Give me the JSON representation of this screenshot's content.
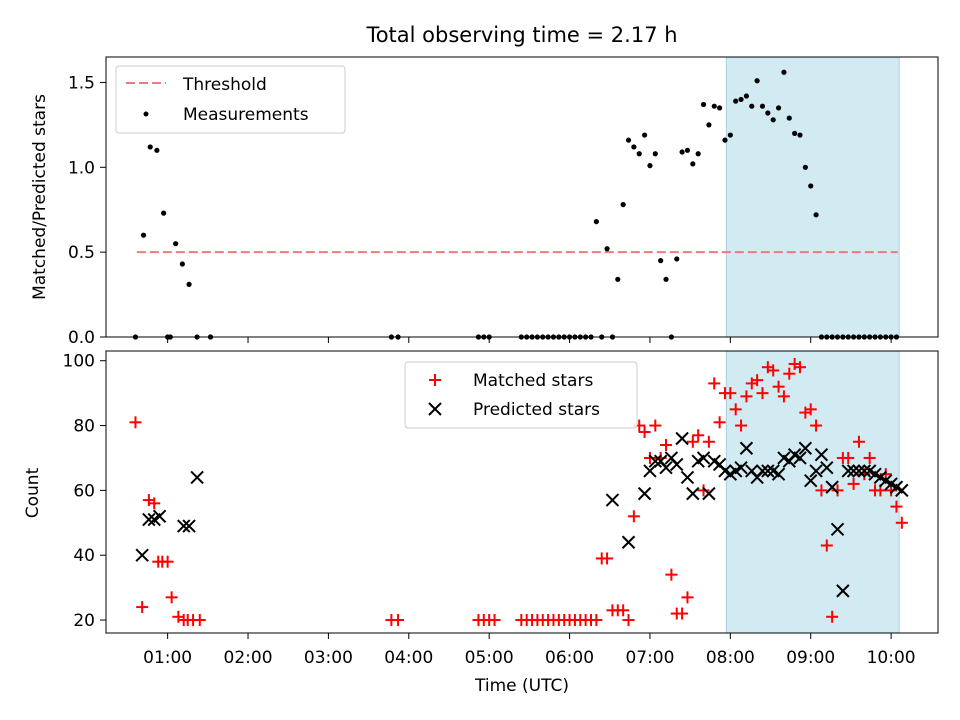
{
  "chart_data": [
    {
      "type": "scatter",
      "title": "Total observing time = 2.17 h",
      "ylabel": "Matched/Predicted stars",
      "xlim": [
        "00:14",
        "10:35"
      ],
      "ylim": [
        0,
        1.65
      ],
      "yticks": [
        0.0,
        0.5,
        1.0,
        1.5
      ],
      "ytick_labels": [
        "0.0",
        "0.5",
        "1.0",
        "1.5"
      ],
      "xticks": [
        "01:00",
        "02:00",
        "03:00",
        "04:00",
        "05:00",
        "06:00",
        "07:00",
        "08:00",
        "09:00",
        "10:00"
      ],
      "legend": {
        "placement": "top-left",
        "entries": [
          "Threshold",
          "Measurements"
        ]
      },
      "threshold": {
        "name": "Threshold",
        "value": 0.5,
        "x_range": [
          "00:37",
          "10:05"
        ],
        "color": "#f07a7a"
      },
      "shaded_interval": {
        "x_range": [
          "07:57",
          "10:06"
        ],
        "color": "#add8e6"
      },
      "series": [
        {
          "name": "Measurements",
          "color": "#000000",
          "x": [
            "00:36",
            "00:42",
            "00:47",
            "00:52",
            "00:57",
            "01:00",
            "01:02",
            "01:06",
            "01:11",
            "01:16",
            "01:22",
            "01:32",
            "03:47",
            "03:52",
            "04:52",
            "04:56",
            "05:00",
            "05:24",
            "05:28",
            "05:32",
            "05:36",
            "05:40",
            "05:44",
            "05:48",
            "05:52",
            "05:56",
            "06:00",
            "06:04",
            "06:08",
            "06:12",
            "06:16",
            "06:20",
            "06:24",
            "06:28",
            "06:32",
            "06:36",
            "06:40",
            "06:44",
            "06:48",
            "06:52",
            "06:56",
            "07:00",
            "07:04",
            "07:08",
            "07:12",
            "07:16",
            "07:20",
            "07:24",
            "07:28",
            "07:32",
            "07:36",
            "07:40",
            "07:44",
            "07:48",
            "07:52",
            "07:56",
            "08:00",
            "08:04",
            "08:08",
            "08:12",
            "08:16",
            "08:20",
            "08:24",
            "08:28",
            "08:32",
            "08:36",
            "08:40",
            "08:44",
            "08:48",
            "08:52",
            "08:56",
            "09:00",
            "09:04",
            "09:08",
            "09:12",
            "09:16",
            "09:20",
            "09:24",
            "09:28",
            "09:32",
            "09:36",
            "09:40",
            "09:44",
            "09:48",
            "09:52",
            "09:56",
            "10:00",
            "10:04"
          ],
          "y": [
            0,
            0.6,
            1.12,
            1.1,
            0.73,
            0,
            0,
            0.55,
            0.43,
            0.31,
            0,
            0,
            0,
            0,
            0,
            0,
            0,
            0,
            0,
            0,
            0,
            0,
            0,
            0,
            0,
            0,
            0,
            0,
            0,
            0,
            0,
            0.68,
            0,
            0.52,
            0,
            0.34,
            0.78,
            1.16,
            1.12,
            1.08,
            1.19,
            1.01,
            1.08,
            0.45,
            0.34,
            0,
            0.46,
            1.09,
            1.1,
            1.02,
            1.08,
            1.37,
            1.25,
            1.36,
            1.35,
            1.16,
            1.19,
            1.39,
            1.4,
            1.42,
            1.36,
            1.51,
            1.36,
            1.32,
            1.28,
            1.35,
            1.56,
            1.29,
            1.2,
            1.19,
            1.0,
            0.89,
            0.72,
            0,
            0,
            0,
            0,
            0,
            0,
            0,
            0,
            0,
            0,
            0,
            0,
            0,
            0,
            0
          ]
        }
      ]
    },
    {
      "type": "scatter",
      "xlabel": "Time (UTC)",
      "ylabel": "Count",
      "xlim": [
        "00:14",
        "10:35"
      ],
      "ylim": [
        16,
        103
      ],
      "yticks": [
        20,
        40,
        60,
        80,
        100
      ],
      "xticks": [
        "01:00",
        "02:00",
        "03:00",
        "04:00",
        "05:00",
        "06:00",
        "07:00",
        "08:00",
        "09:00",
        "10:00"
      ],
      "legend": {
        "placement": "top-center",
        "entries": [
          "Matched stars",
          "Predicted stars"
        ]
      },
      "shaded_interval": {
        "x_range": [
          "07:57",
          "10:06"
        ],
        "color": "#add8e6"
      },
      "series": [
        {
          "name": "Matched stars",
          "marker": "+",
          "color": "#ff0000",
          "x": [
            "00:36",
            "00:41",
            "00:46",
            "00:50",
            "00:53",
            "00:56",
            "01:00",
            "01:03",
            "01:08",
            "01:12",
            "01:15",
            "01:19",
            "01:24",
            "03:47",
            "03:52",
            "04:52",
            "04:56",
            "05:00",
            "05:04",
            "05:24",
            "05:28",
            "05:32",
            "05:36",
            "05:40",
            "05:44",
            "05:48",
            "05:52",
            "05:56",
            "06:00",
            "06:04",
            "06:08",
            "06:12",
            "06:16",
            "06:20",
            "06:24",
            "06:28",
            "06:32",
            "06:36",
            "06:40",
            "06:44",
            "06:48",
            "06:52",
            "06:56",
            "07:00",
            "07:04",
            "07:08",
            "07:12",
            "07:16",
            "07:20",
            "07:24",
            "07:28",
            "07:32",
            "07:36",
            "07:40",
            "07:44",
            "07:48",
            "07:52",
            "07:56",
            "08:00",
            "08:04",
            "08:08",
            "08:12",
            "08:16",
            "08:20",
            "08:24",
            "08:28",
            "08:32",
            "08:36",
            "08:40",
            "08:44",
            "08:48",
            "08:52",
            "08:56",
            "09:00",
            "09:04",
            "09:08",
            "09:12",
            "09:16",
            "09:20",
            "09:24",
            "09:28",
            "09:32",
            "09:36",
            "09:40",
            "09:44",
            "09:48",
            "09:52",
            "09:56",
            "10:00",
            "10:04",
            "10:08"
          ],
          "y": [
            81,
            24,
            57,
            56,
            38,
            38,
            38,
            27,
            21,
            20,
            20,
            20,
            20,
            20,
            20,
            20,
            20,
            20,
            20,
            20,
            20,
            20,
            20,
            20,
            20,
            20,
            20,
            20,
            20,
            20,
            20,
            20,
            20,
            20,
            39,
            39,
            23,
            23,
            23,
            20,
            52,
            80,
            78,
            70,
            80,
            70,
            74,
            34,
            22,
            22,
            27,
            75,
            77,
            60,
            75,
            93,
            81,
            90,
            90,
            85,
            80,
            89,
            93,
            94,
            90,
            98,
            97,
            92,
            89,
            96,
            99,
            98,
            84,
            85,
            80,
            60,
            43,
            21,
            60,
            70,
            70,
            62,
            75,
            65,
            70,
            60,
            60,
            65,
            60,
            55,
            50
          ]
        },
        {
          "name": "Predicted stars",
          "marker": "x",
          "color": "#000000",
          "x": [
            "00:41",
            "00:46",
            "00:50",
            "00:54",
            "01:12",
            "01:16",
            "01:22",
            "06:32",
            "06:44",
            "06:56",
            "07:00",
            "07:04",
            "07:08",
            "07:12",
            "07:16",
            "07:20",
            "07:24",
            "07:28",
            "07:32",
            "07:36",
            "07:40",
            "07:44",
            "07:48",
            "07:52",
            "07:56",
            "08:00",
            "08:04",
            "08:08",
            "08:12",
            "08:16",
            "08:20",
            "08:24",
            "08:28",
            "08:32",
            "08:36",
            "08:40",
            "08:44",
            "08:48",
            "08:52",
            "08:56",
            "09:00",
            "09:04",
            "09:08",
            "09:12",
            "09:16",
            "09:20",
            "09:24",
            "09:28",
            "09:32",
            "09:36",
            "09:40",
            "09:44",
            "09:48",
            "09:52",
            "09:56",
            "10:00",
            "10:04",
            "10:08"
          ],
          "y": [
            40,
            51,
            51,
            52,
            49,
            49,
            64,
            57,
            44,
            59,
            66,
            69,
            69,
            67,
            70,
            68,
            76,
            64,
            59,
            69,
            70,
            59,
            69,
            68,
            66,
            65,
            66,
            67,
            73,
            66,
            64,
            66,
            66,
            66,
            65,
            70,
            69,
            71,
            70,
            73,
            63,
            66,
            71,
            67,
            61,
            48,
            29,
            66,
            66,
            66,
            66,
            66,
            65,
            64,
            63,
            62,
            61,
            60
          ]
        }
      ]
    }
  ]
}
